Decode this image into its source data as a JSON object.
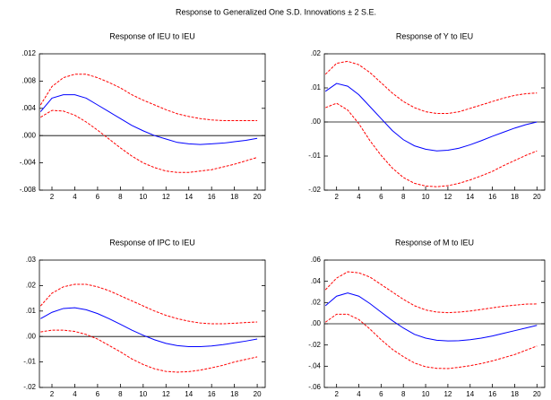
{
  "title": "Response to Generalized One S.D. Innovations ± 2 S.E.",
  "chart_data": [
    {
      "type": "line",
      "title": "Response of IEU to IEU",
      "x": [
        1,
        2,
        3,
        4,
        5,
        6,
        7,
        8,
        9,
        10,
        11,
        12,
        13,
        14,
        15,
        16,
        17,
        18,
        19,
        20
      ],
      "xlim": [
        0.9,
        20.7
      ],
      "xticks": [
        2,
        4,
        6,
        8,
        10,
        12,
        14,
        16,
        18,
        20
      ],
      "ylim": [
        -0.008,
        0.012
      ],
      "yticks": [
        {
          "value": -0.008,
          "label": "-.008"
        },
        {
          "value": -0.004,
          "label": "-.004"
        },
        {
          "value": 0,
          "label": ".000"
        },
        {
          "value": 0.004,
          "label": ".004"
        },
        {
          "value": 0.008,
          "label": ".008"
        },
        {
          "value": 0.012,
          "label": ".012"
        }
      ],
      "series": [
        {
          "color": "#0000ff",
          "dashed": false,
          "values": [
            0.0035,
            0.0055,
            0.006,
            0.006,
            0.0055,
            0.0045,
            0.0035,
            0.0025,
            0.0015,
            0.0007,
            0,
            -0.0005,
            -0.001,
            -0.0012,
            -0.0013,
            -0.0012,
            -0.0011,
            -0.0009,
            -0.0007,
            -0.0004
          ]
        },
        {
          "color": "#ff0000",
          "dashed": true,
          "values": [
            0.0045,
            0.0072,
            0.0085,
            0.009,
            0.009,
            0.0085,
            0.0078,
            0.007,
            0.006,
            0.0052,
            0.0045,
            0.0038,
            0.0032,
            0.0028,
            0.0025,
            0.0023,
            0.0022,
            0.0022,
            0.0022,
            0.0022
          ]
        },
        {
          "color": "#ff0000",
          "dashed": true,
          "values": [
            0.0027,
            0.0037,
            0.0036,
            0.003,
            0.002,
            0.0008,
            -0.0005,
            -0.0018,
            -0.003,
            -0.004,
            -0.0047,
            -0.0052,
            -0.0054,
            -0.0054,
            -0.0052,
            -0.005,
            -0.0046,
            -0.0042,
            -0.0037,
            -0.0032
          ]
        }
      ]
    },
    {
      "type": "line",
      "title": "Response of Y to IEU",
      "x": [
        1,
        2,
        3,
        4,
        5,
        6,
        7,
        8,
        9,
        10,
        11,
        12,
        13,
        14,
        15,
        16,
        17,
        18,
        19,
        20
      ],
      "xlim": [
        0.9,
        20.7
      ],
      "xticks": [
        2,
        4,
        6,
        8,
        10,
        12,
        14,
        16,
        18,
        20
      ],
      "ylim": [
        -0.02,
        0.02
      ],
      "yticks": [
        {
          "value": -0.02,
          "label": "-.02"
        },
        {
          "value": -0.01,
          "label": "-.01"
        },
        {
          "value": 0,
          "label": ".00"
        },
        {
          "value": 0.01,
          "label": ".01"
        },
        {
          "value": 0.02,
          "label": ".02"
        }
      ],
      "series": [
        {
          "color": "#0000ff",
          "dashed": false,
          "values": [
            0.009,
            0.0113,
            0.0105,
            0.008,
            0.0045,
            0.001,
            -0.0025,
            -0.0052,
            -0.007,
            -0.008,
            -0.0085,
            -0.0083,
            -0.0077,
            -0.0067,
            -0.0055,
            -0.0042,
            -0.003,
            -0.0018,
            -0.0008,
            0
          ]
        },
        {
          "color": "#ff0000",
          "dashed": true,
          "values": [
            0.014,
            0.0172,
            0.0178,
            0.0168,
            0.0145,
            0.0115,
            0.0085,
            0.006,
            0.0042,
            0.003,
            0.0025,
            0.0025,
            0.003,
            0.004,
            0.005,
            0.006,
            0.007,
            0.0078,
            0.0083,
            0.0085
          ]
        },
        {
          "color": "#ff0000",
          "dashed": true,
          "values": [
            0.0042,
            0.0055,
            0.0035,
            -0.0005,
            -0.0055,
            -0.0098,
            -0.0135,
            -0.0163,
            -0.018,
            -0.0188,
            -0.019,
            -0.0187,
            -0.018,
            -0.017,
            -0.0158,
            -0.0145,
            -0.0128,
            -0.0113,
            -0.0098,
            -0.0085
          ]
        }
      ]
    },
    {
      "type": "line",
      "title": "Response of IPC to IEU",
      "x": [
        1,
        2,
        3,
        4,
        5,
        6,
        7,
        8,
        9,
        10,
        11,
        12,
        13,
        14,
        15,
        16,
        17,
        18,
        19,
        20
      ],
      "xlim": [
        0.9,
        20.7
      ],
      "xticks": [
        2,
        4,
        6,
        8,
        10,
        12,
        14,
        16,
        18,
        20
      ],
      "ylim": [
        -0.02,
        0.03
      ],
      "yticks": [
        {
          "value": -0.02,
          "label": "-.02"
        },
        {
          "value": -0.01,
          "label": "-.01"
        },
        {
          "value": 0,
          "label": ".00"
        },
        {
          "value": 0.01,
          "label": ".01"
        },
        {
          "value": 0.02,
          "label": ".02"
        },
        {
          "value": 0.03,
          "label": ".03"
        }
      ],
      "series": [
        {
          "color": "#0000ff",
          "dashed": false,
          "values": [
            0.007,
            0.0095,
            0.011,
            0.0113,
            0.0105,
            0.009,
            0.007,
            0.0048,
            0.0025,
            0.0005,
            -0.0013,
            -0.0027,
            -0.0036,
            -0.004,
            -0.004,
            -0.0037,
            -0.0032,
            -0.0025,
            -0.0018,
            -0.001
          ]
        },
        {
          "color": "#ff0000",
          "dashed": true,
          "values": [
            0.012,
            0.017,
            0.0195,
            0.0205,
            0.0205,
            0.0195,
            0.018,
            0.016,
            0.014,
            0.012,
            0.01,
            0.0083,
            0.007,
            0.006,
            0.0053,
            0.005,
            0.005,
            0.0052,
            0.0055,
            0.0057
          ]
        },
        {
          "color": "#ff0000",
          "dashed": true,
          "values": [
            0.0018,
            0.0025,
            0.0025,
            0.002,
            0.0008,
            -0.001,
            -0.0035,
            -0.006,
            -0.0088,
            -0.011,
            -0.0127,
            -0.0137,
            -0.014,
            -0.0138,
            -0.0132,
            -0.0123,
            -0.0113,
            -0.01,
            -0.009,
            -0.008
          ]
        }
      ]
    },
    {
      "type": "line",
      "title": "Response of M to IEU",
      "x": [
        1,
        2,
        3,
        4,
        5,
        6,
        7,
        8,
        9,
        10,
        11,
        12,
        13,
        14,
        15,
        16,
        17,
        18,
        19,
        20
      ],
      "xlim": [
        0.9,
        20.7
      ],
      "xticks": [
        2,
        4,
        6,
        8,
        10,
        12,
        14,
        16,
        18,
        20
      ],
      "ylim": [
        -0.06,
        0.06
      ],
      "yticks": [
        {
          "value": -0.06,
          "label": "-.06"
        },
        {
          "value": -0.04,
          "label": "-.04"
        },
        {
          "value": -0.02,
          "label": "-.02"
        },
        {
          "value": 0,
          "label": ".00"
        },
        {
          "value": 0.02,
          "label": ".02"
        },
        {
          "value": 0.04,
          "label": ".04"
        },
        {
          "value": 0.06,
          "label": ".06"
        }
      ],
      "series": [
        {
          "color": "#0000ff",
          "dashed": false,
          "values": [
            0.017,
            0.026,
            0.029,
            0.026,
            0.019,
            0.011,
            0.003,
            -0.004,
            -0.01,
            -0.0135,
            -0.0155,
            -0.0162,
            -0.016,
            -0.015,
            -0.0135,
            -0.0115,
            -0.009,
            -0.0065,
            -0.004,
            -0.0015
          ]
        },
        {
          "color": "#ff0000",
          "dashed": true,
          "values": [
            0.032,
            0.043,
            0.049,
            0.048,
            0.044,
            0.037,
            0.03,
            0.023,
            0.017,
            0.013,
            0.011,
            0.0105,
            0.011,
            0.012,
            0.0135,
            0.015,
            0.0165,
            0.0175,
            0.0185,
            0.0187
          ]
        },
        {
          "color": "#ff0000",
          "dashed": true,
          "values": [
            0.0015,
            0.009,
            0.009,
            0.004,
            -0.005,
            -0.015,
            -0.024,
            -0.031,
            -0.037,
            -0.0405,
            -0.042,
            -0.0422,
            -0.041,
            -0.0395,
            -0.0375,
            -0.035,
            -0.032,
            -0.029,
            -0.025,
            -0.021
          ]
        }
      ]
    }
  ]
}
